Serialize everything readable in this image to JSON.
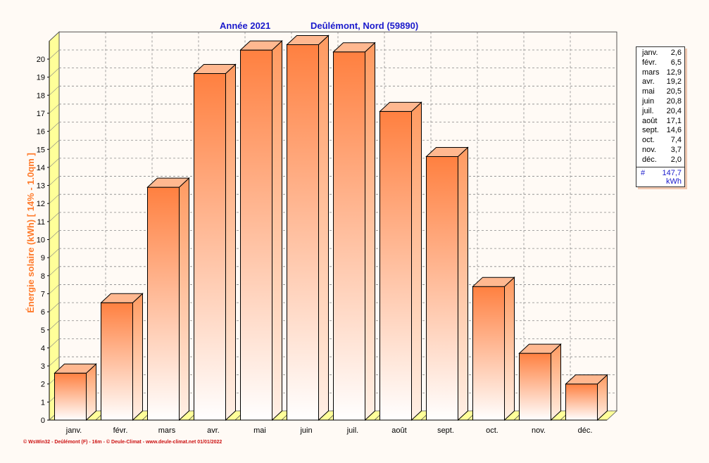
{
  "header": {
    "year_label": "Année  2021",
    "location": "Deûlémont, Nord (59890)"
  },
  "chart_data": {
    "type": "bar",
    "categories": [
      "janv.",
      "févr.",
      "mars",
      "avr.",
      "mai",
      "juin",
      "juil.",
      "août",
      "sept.",
      "oct.",
      "nov.",
      "déc."
    ],
    "values": [
      2.6,
      6.5,
      12.9,
      19.2,
      20.5,
      20.8,
      20.4,
      17.1,
      14.6,
      7.4,
      3.7,
      2.0
    ],
    "ylabel": "Énergie solaire  (kWh)   [ 14% - 1.0qm ]",
    "ylim": [
      0,
      21
    ],
    "yticks": [
      0,
      1,
      2,
      3,
      4,
      5,
      6,
      7,
      8,
      9,
      10,
      11,
      12,
      13,
      14,
      15,
      16,
      17,
      18,
      19,
      20
    ],
    "grid": true,
    "legend_position": "right",
    "colors": {
      "bar_top": "#ff8040",
      "bar_bottom": "#ffffff",
      "floor": "#ffff99",
      "title": "#1a1acc",
      "axis_label": "#ff7a2a"
    }
  },
  "legend": {
    "items": [
      {
        "label": "janv.",
        "value": "2,6"
      },
      {
        "label": "févr.",
        "value": "6,5"
      },
      {
        "label": "mars",
        "value": "12,9"
      },
      {
        "label": "avr.",
        "value": "19,2"
      },
      {
        "label": "mai",
        "value": "20,5"
      },
      {
        "label": "juin",
        "value": "20,8"
      },
      {
        "label": "juil.",
        "value": "20,4"
      },
      {
        "label": "août",
        "value": "17,1"
      },
      {
        "label": "sept.",
        "value": "14,6"
      },
      {
        "label": "oct.",
        "value": "7,4"
      },
      {
        "label": "nov.",
        "value": "3,7"
      },
      {
        "label": "déc.",
        "value": "2,0"
      }
    ],
    "total_symbol": "#",
    "total_value": "147,7",
    "total_unit": "kWh"
  },
  "footer": {
    "credit": "© WsWin32 - Deûlémont (F) - 16m - © Deule-Climat - www.deule-climat.net  01/01/2022"
  }
}
